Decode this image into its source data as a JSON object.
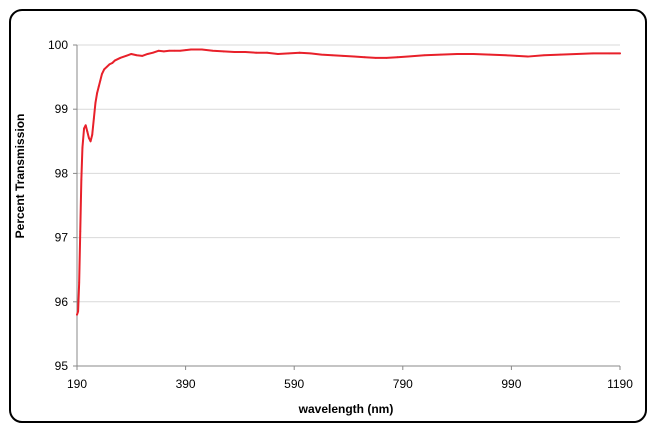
{
  "chart_data": {
    "type": "line",
    "title": "",
    "xlabel": "wavelength (nm)",
    "ylabel": "Percent Transmission",
    "xlim": [
      190,
      1190
    ],
    "ylim": [
      95,
      100
    ],
    "x_ticks": [
      190,
      390,
      590,
      790,
      990,
      1190
    ],
    "y_ticks": [
      95,
      96,
      97,
      98,
      99,
      100
    ],
    "grid": true,
    "legend": "none",
    "series": [
      {
        "color": "#e8202a",
        "x": [
          190,
          192,
          194,
          196,
          198,
          200,
          203,
          206,
          209,
          212,
          215,
          218,
          221,
          224,
          227,
          230,
          233,
          236,
          240,
          245,
          250,
          255,
          260,
          270,
          280,
          290,
          300,
          310,
          320,
          330,
          340,
          350,
          360,
          370,
          380,
          390,
          400,
          420,
          440,
          460,
          480,
          500,
          520,
          540,
          560,
          580,
          600,
          620,
          640,
          660,
          680,
          700,
          720,
          740,
          760,
          780,
          800,
          830,
          860,
          890,
          920,
          950,
          980,
          1000,
          1020,
          1050,
          1080,
          1110,
          1140,
          1170,
          1190
        ],
        "y": [
          95.8,
          95.85,
          96.3,
          97.1,
          97.9,
          98.4,
          98.7,
          98.75,
          98.65,
          98.55,
          98.5,
          98.6,
          98.85,
          99.1,
          99.25,
          99.35,
          99.45,
          99.55,
          99.62,
          99.66,
          99.7,
          99.72,
          99.76,
          99.8,
          99.83,
          99.86,
          99.84,
          99.83,
          99.86,
          99.88,
          99.91,
          99.9,
          99.91,
          99.91,
          99.91,
          99.92,
          99.93,
          99.93,
          99.91,
          99.9,
          99.89,
          99.89,
          99.88,
          99.88,
          99.86,
          99.87,
          99.88,
          99.87,
          99.85,
          99.84,
          99.83,
          99.82,
          99.81,
          99.8,
          99.8,
          99.81,
          99.82,
          99.84,
          99.85,
          99.86,
          99.86,
          99.85,
          99.84,
          99.83,
          99.82,
          99.84,
          99.85,
          99.86,
          99.87,
          99.87,
          99.87
        ]
      }
    ]
  }
}
